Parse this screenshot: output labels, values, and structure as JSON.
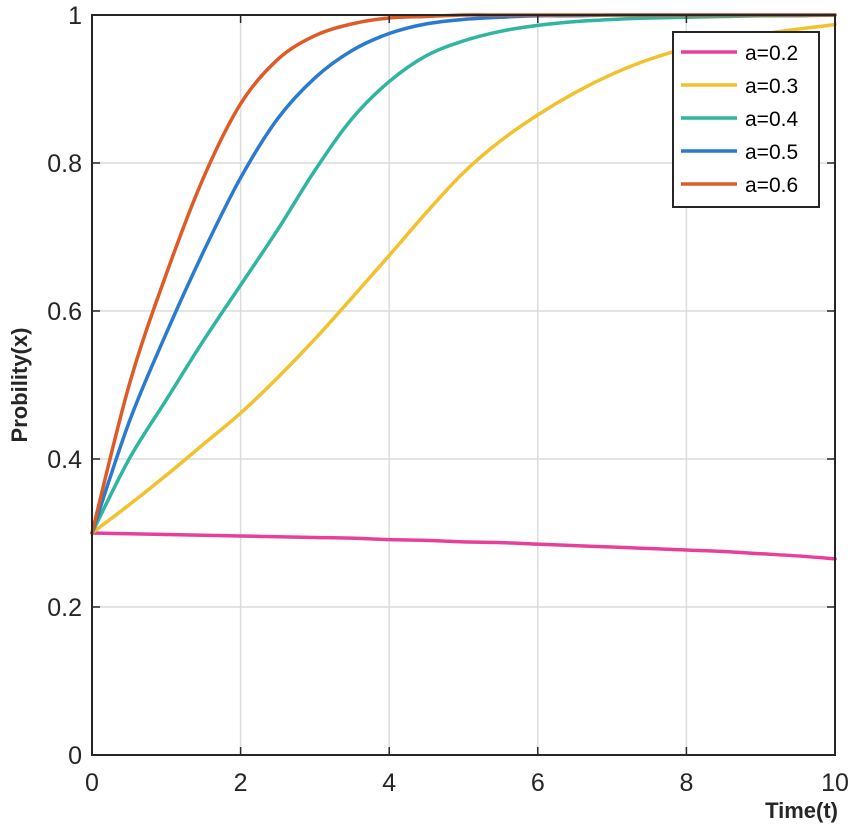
{
  "chart_data": {
    "type": "line",
    "title": "",
    "xlabel": "Time(t)",
    "ylabel": "Probility(x)",
    "xlim": [
      0,
      10
    ],
    "ylim": [
      0,
      1
    ],
    "xticks": [
      0,
      2,
      4,
      6,
      8,
      10
    ],
    "yticks": [
      0,
      0.2,
      0.4,
      0.6,
      0.8,
      1
    ],
    "xtick_labels": [
      "0",
      "2",
      "4",
      "6",
      "8",
      "10"
    ],
    "ytick_labels": [
      "0",
      "0.2",
      "0.4",
      "0.6",
      "0.8",
      "1"
    ],
    "grid": true,
    "legend_position": "top-right",
    "x": [
      0,
      0.5,
      1,
      1.5,
      2,
      2.5,
      3,
      3.5,
      4,
      4.5,
      5,
      5.5,
      6,
      6.5,
      7,
      7.5,
      8,
      8.5,
      9,
      9.5,
      10
    ],
    "series": [
      {
        "name": "a=0.2",
        "color": "#e8409a",
        "values": [
          0.3,
          0.299,
          0.298,
          0.297,
          0.296,
          0.295,
          0.294,
          0.293,
          0.291,
          0.29,
          0.288,
          0.287,
          0.285,
          0.283,
          0.281,
          0.279,
          0.277,
          0.275,
          0.272,
          0.269,
          0.265
        ]
      },
      {
        "name": "a=0.3",
        "color": "#f2c12e",
        "values": [
          0.3,
          0.338,
          0.378,
          0.42,
          0.462,
          0.51,
          0.562,
          0.618,
          0.675,
          0.733,
          0.787,
          0.83,
          0.865,
          0.895,
          0.92,
          0.94,
          0.955,
          0.965,
          0.974,
          0.981,
          0.987
        ]
      },
      {
        "name": "a=0.4",
        "color": "#2fb5a0",
        "values": [
          0.3,
          0.4,
          0.48,
          0.56,
          0.635,
          0.71,
          0.79,
          0.86,
          0.91,
          0.945,
          0.965,
          0.978,
          0.986,
          0.991,
          0.994,
          0.996,
          0.997,
          0.998,
          0.999,
          0.999,
          1.0
        ]
      },
      {
        "name": "a=0.5",
        "color": "#2a7bd0",
        "values": [
          0.3,
          0.45,
          0.57,
          0.68,
          0.78,
          0.86,
          0.915,
          0.952,
          0.975,
          0.988,
          0.994,
          0.997,
          0.999,
          0.999,
          1.0,
          1.0,
          1.0,
          1.0,
          1.0,
          1.0,
          1.0
        ]
      },
      {
        "name": "a=0.6",
        "color": "#de5b28",
        "values": [
          0.3,
          0.5,
          0.65,
          0.78,
          0.88,
          0.94,
          0.972,
          0.988,
          0.996,
          0.998,
          1.0,
          1.0,
          1.0,
          1.0,
          1.0,
          1.0,
          1.0,
          1.0,
          1.0,
          1.0,
          1.0
        ]
      }
    ]
  }
}
